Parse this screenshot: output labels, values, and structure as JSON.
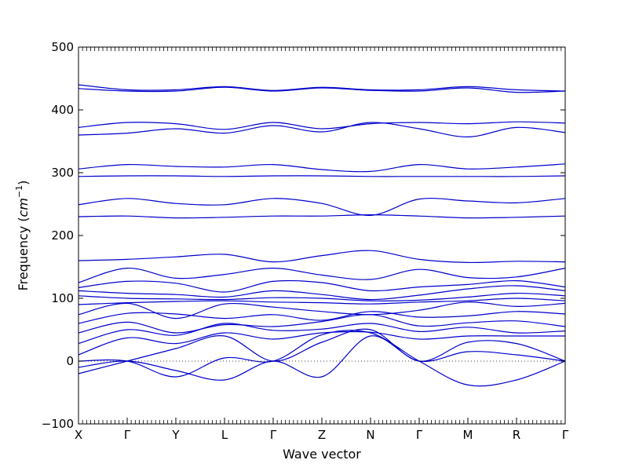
{
  "chart_data": {
    "type": "line",
    "title": "",
    "xlabel": "Wave vector",
    "ylabel": "Frequency (cm⁻¹)",
    "ylabel_base": "Frequency (",
    "ylabel_unit": "cm",
    "ylabel_exp": "−1",
    "ylabel_close": ")",
    "ylim": [
      -100,
      500
    ],
    "xlim": [
      0,
      10
    ],
    "yticks": [
      "−100",
      "0",
      "100",
      "200",
      "300",
      "400",
      "500"
    ],
    "ytick_values": [
      -100,
      0,
      100,
      200,
      300,
      400,
      500
    ],
    "xticks": [
      "X",
      "Γ",
      "Y",
      "L",
      "Γ",
      "Z",
      "N",
      "Γ",
      "M",
      "R",
      "Γ"
    ],
    "xtick_values": [
      0,
      1,
      2,
      3,
      4,
      5,
      6,
      7,
      8,
      9,
      10
    ],
    "grid": false,
    "zero_line": "dotted",
    "line_color": "#0000cc",
    "series": [
      {
        "values": [
          440,
          432,
          432,
          437,
          431,
          436,
          432,
          432,
          437,
          432,
          430
        ]
      },
      {
        "values": [
          434,
          430,
          430,
          436,
          430,
          435,
          431,
          430,
          435,
          428,
          430
        ]
      },
      {
        "values": [
          372,
          380,
          378,
          369,
          380,
          370,
          378,
          380,
          378,
          381,
          379
        ]
      },
      {
        "values": [
          360,
          363,
          370,
          363,
          375,
          365,
          380,
          370,
          357,
          372,
          364
        ]
      },
      {
        "values": [
          306,
          313,
          310,
          309,
          313,
          305,
          302,
          313,
          306,
          309,
          314
        ]
      },
      {
        "values": [
          294,
          295,
          295,
          294,
          295,
          295,
          294,
          294,
          294,
          294,
          295
        ]
      },
      {
        "values": [
          249,
          259,
          251,
          249,
          259,
          251,
          232,
          258,
          255,
          252,
          259
        ]
      },
      {
        "values": [
          230,
          231,
          228,
          229,
          231,
          231,
          233,
          231,
          228,
          229,
          231
        ]
      },
      {
        "values": [
          160,
          162,
          166,
          170,
          158,
          168,
          176,
          162,
          157,
          159,
          158
        ]
      },
      {
        "values": [
          125,
          148,
          132,
          138,
          148,
          137,
          130,
          146,
          133,
          134,
          148
        ]
      },
      {
        "values": [
          117,
          127,
          124,
          110,
          127,
          125,
          112,
          118,
          122,
          128,
          118
        ]
      },
      {
        "values": [
          112,
          108,
          106,
          102,
          112,
          106,
          98,
          105,
          115,
          120,
          112
        ]
      },
      {
        "values": [
          104,
          100,
          99,
          98,
          101,
          100,
          96,
          97,
          102,
          108,
          104
        ]
      },
      {
        "values": [
          90,
          93,
          95,
          96,
          94,
          93,
          91,
          94,
          96,
          100,
          96
        ]
      },
      {
        "values": [
          74,
          92,
          68,
          91,
          86,
          79,
          74,
          81,
          94,
          87,
          92
        ]
      },
      {
        "values": [
          60,
          76,
          75,
          68,
          74,
          65,
          79,
          70,
          72,
          79,
          75
        ]
      },
      {
        "values": [
          45,
          62,
          45,
          58,
          55,
          63,
          74,
          56,
          61,
          64,
          55
        ]
      },
      {
        "values": [
          28,
          50,
          41,
          60,
          49,
          51,
          60,
          47,
          54,
          45,
          48
        ]
      },
      {
        "values": [
          10,
          37,
          28,
          45,
          35,
          45,
          46,
          35,
          40,
          40,
          40
        ]
      },
      {
        "values": [
          -20,
          0,
          20,
          40,
          0,
          30,
          50,
          0,
          30,
          28,
          0
        ]
      },
      {
        "values": [
          -10,
          0,
          -15,
          -30,
          0,
          -25,
          40,
          0,
          15,
          10,
          0
        ]
      },
      {
        "values": [
          0,
          0,
          -25,
          5,
          0,
          42,
          45,
          0,
          -38,
          -30,
          0
        ]
      }
    ]
  }
}
